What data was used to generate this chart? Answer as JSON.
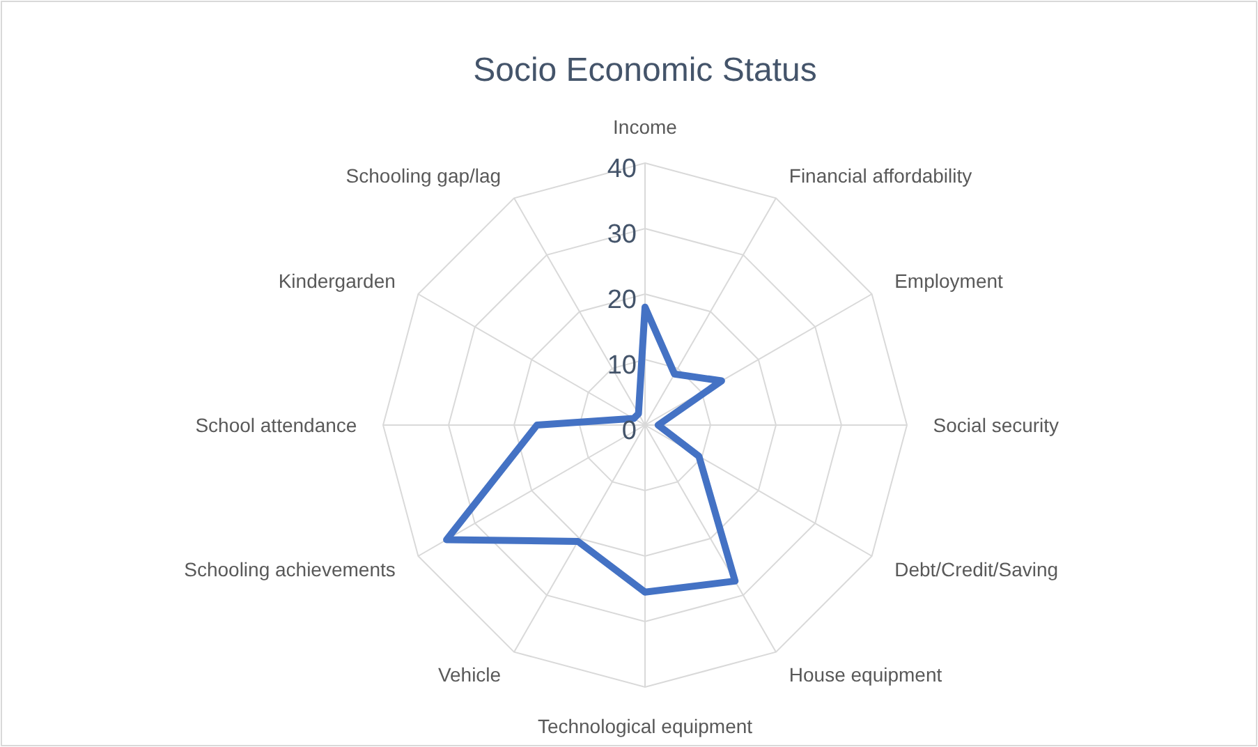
{
  "chart_data": {
    "type": "radar",
    "title": "Socio Economic Status",
    "categories": [
      "Income",
      "Financial affordability",
      "Employment",
      "Social security",
      "Debt/Credit/Saving",
      "House equipment",
      "Technological equipment",
      "Vehicle",
      "Schooling achievements",
      "School attendance",
      "Kindergarden",
      "Schooling gap/lag"
    ],
    "series": [
      {
        "color": "#4472c4",
        "values": [
          18,
          9,
          13.5,
          2,
          9.5,
          27.5,
          25.5,
          20.5,
          35,
          16.5,
          2,
          2
        ]
      }
    ],
    "ylim": [
      0,
      40
    ],
    "yticks": [
      0,
      10,
      20,
      30,
      40
    ],
    "grid": true,
    "marker": "none",
    "line_style": "solid"
  }
}
